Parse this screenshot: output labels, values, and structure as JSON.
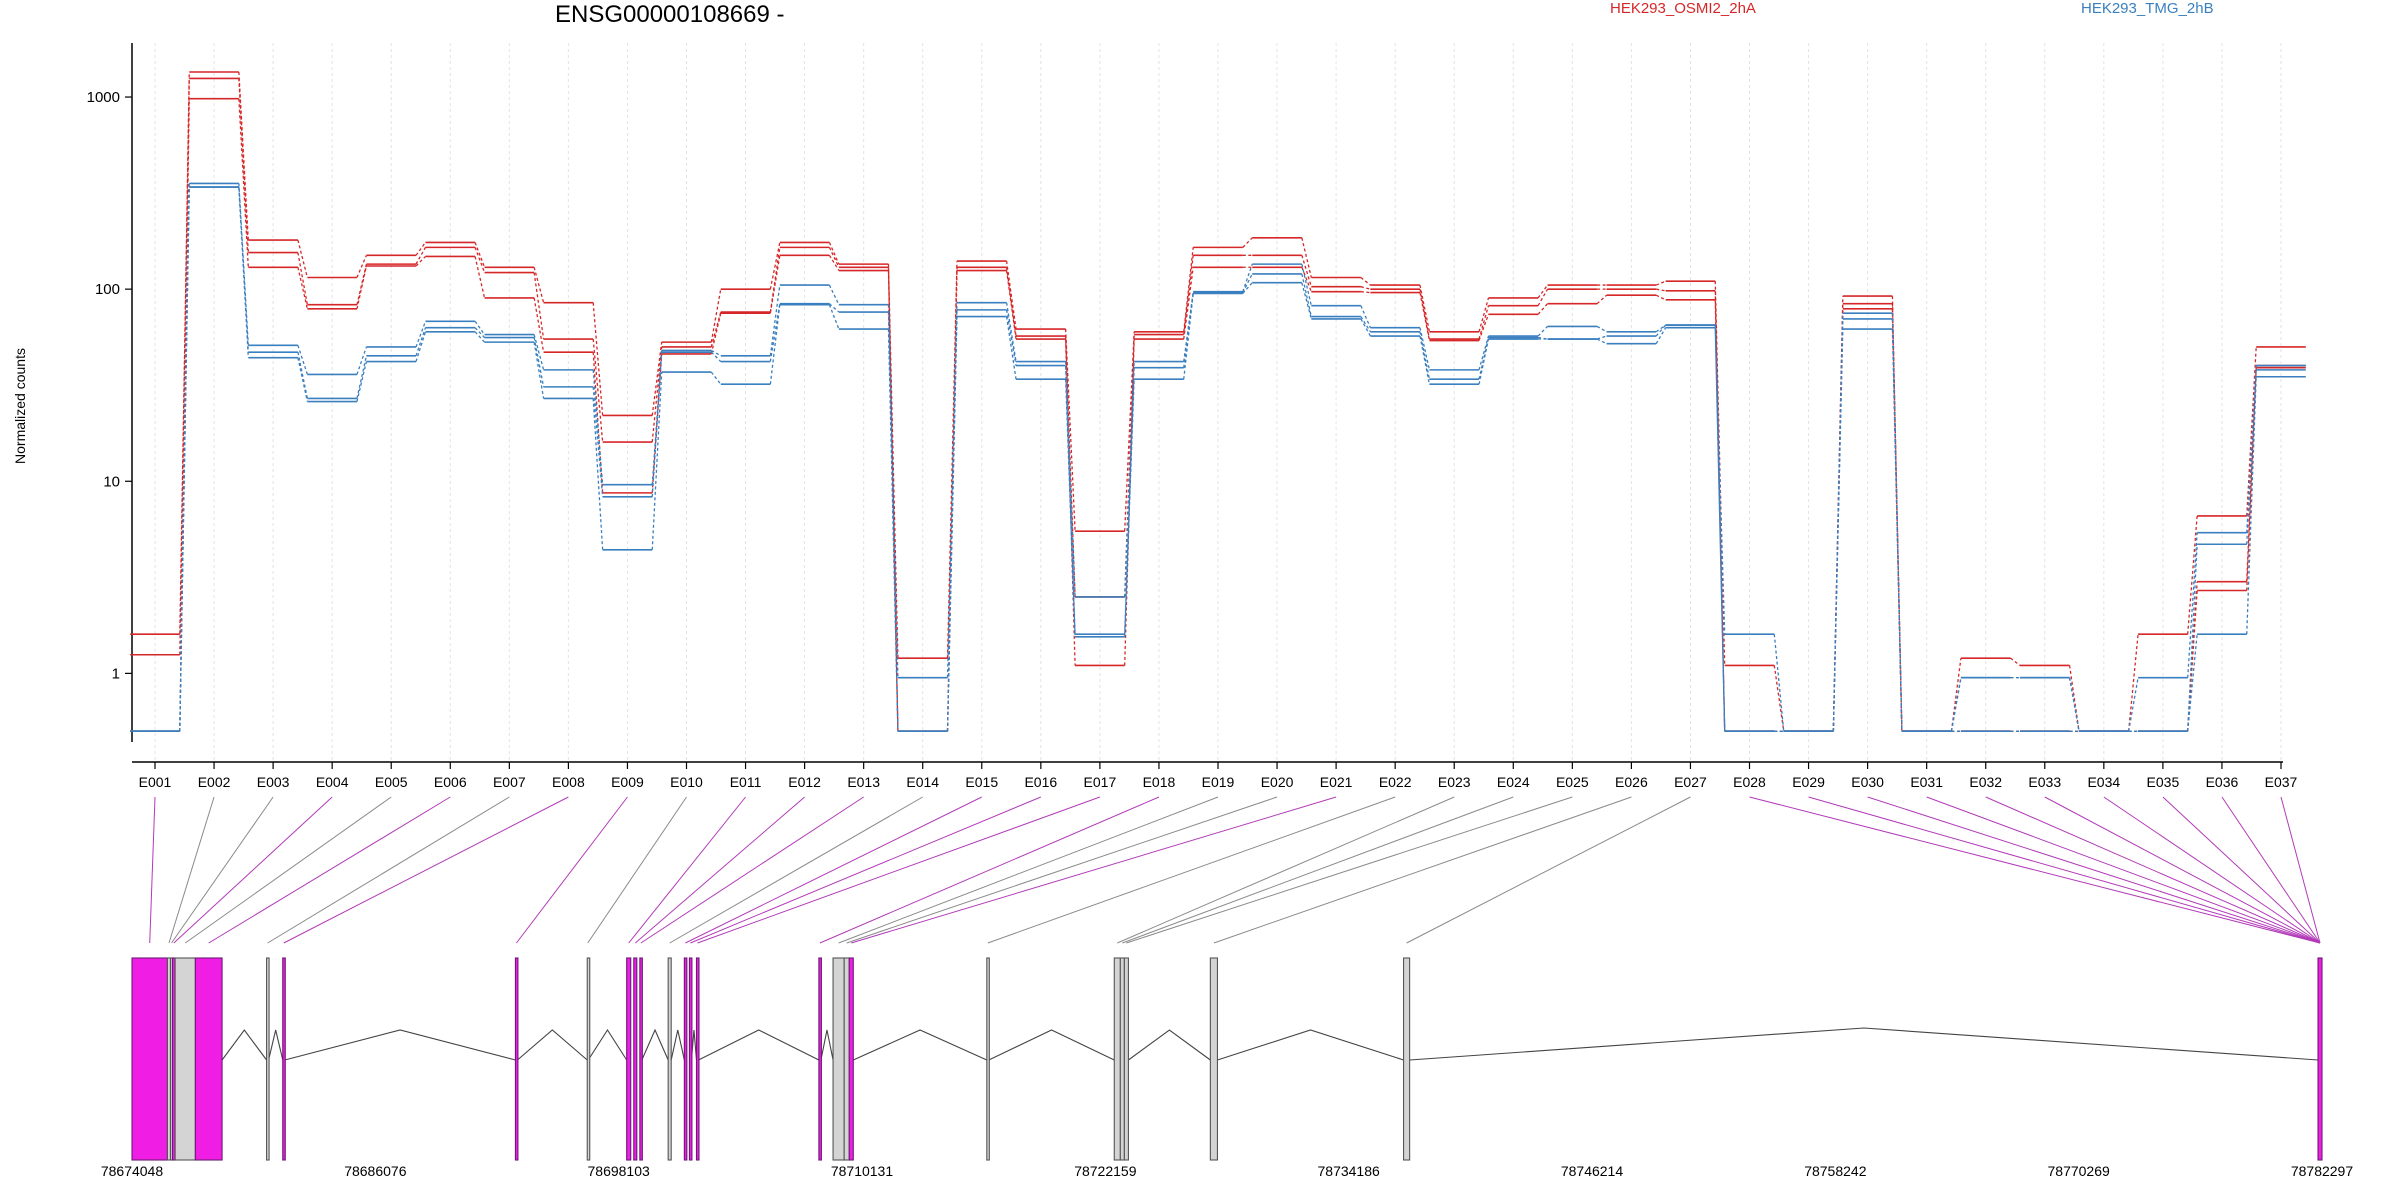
{
  "chart_data": {
    "type": "line",
    "title": "ENSG00000108669 -",
    "ylabel": "Normalized counts",
    "yscale": "log",
    "ylim": [
      0.45,
      1800
    ],
    "yticks": [
      "1000",
      "100",
      "10",
      "1"
    ],
    "yticks_values": [
      1000,
      100,
      10,
      1
    ],
    "categories": [
      "E001",
      "E002",
      "E003",
      "E004",
      "E005",
      "E006",
      "E007",
      "E008",
      "E009",
      "E010",
      "E011",
      "E012",
      "E013",
      "E014",
      "E015",
      "E016",
      "E017",
      "E018",
      "E019",
      "E020",
      "E021",
      "E022",
      "E023",
      "E024",
      "E025",
      "E026",
      "E027",
      "E028",
      "E029",
      "E030",
      "E031",
      "E032",
      "E033",
      "E034",
      "E035",
      "E036",
      "E037"
    ],
    "legend": [
      {
        "name": "HEK293_OSMI2_2hA",
        "color": "#d62728"
      },
      {
        "name": "HEK293_TMG_2hB",
        "color": "#3a7fbf"
      }
    ],
    "series": [
      {
        "group": "HEK293_OSMI2_2hA",
        "color": "#d62728",
        "values": [
          1.25,
          1350,
          180,
          115,
          150,
          175,
          130,
          85,
          22,
          53,
          100,
          175,
          135,
          1.2,
          140,
          62,
          5.5,
          60,
          165,
          185,
          115,
          105,
          60,
          90,
          105,
          105,
          110,
          1.1,
          0.5,
          92,
          0.5,
          1.2,
          1.1,
          0.5,
          1.6,
          6.6,
          50
        ]
      },
      {
        "group": "HEK293_OSMI2_2hA",
        "color": "#d62728",
        "values": [
          1.6,
          1250,
          155,
          83,
          135,
          165,
          122,
          55,
          16,
          50,
          76,
          165,
          130,
          0.5,
          130,
          57,
          2.5,
          58,
          150,
          150,
          103,
          100,
          55,
          82,
          100,
          100,
          98,
          0.5,
          0.5,
          84,
          0.5,
          0.5,
          0.5,
          0.5,
          0.5,
          3.0,
          40
        ]
      },
      {
        "group": "HEK293_OSMI2_2hA",
        "color": "#d62728",
        "values": [
          0.5,
          980,
          130,
          79,
          132,
          148,
          90,
          47,
          8.7,
          46,
          75,
          150,
          125,
          0.5,
          125,
          55,
          1.1,
          55,
          130,
          130,
          97,
          96,
          54,
          74,
          84,
          93,
          88,
          0.5,
          0.5,
          79,
          0.5,
          0.5,
          0.5,
          0.5,
          0.5,
          2.7,
          39
        ]
      },
      {
        "group": "HEK293_TMG_2hB",
        "color": "#3a7fbf",
        "values": [
          0.5,
          355,
          51,
          36,
          50,
          68,
          58,
          38,
          9.6,
          48,
          45,
          105,
          83,
          0.95,
          85,
          42,
          2.5,
          42,
          97,
          135,
          82,
          63,
          38,
          57,
          64,
          60,
          65,
          1.6,
          0.5,
          75,
          0.5,
          0.95,
          0.95,
          0.5,
          0.95,
          5.4,
          40
        ]
      },
      {
        "group": "HEK293_TMG_2hB",
        "color": "#3a7fbf",
        "values": [
          0.5,
          340,
          47,
          27,
          45,
          63,
          56,
          31,
          8.3,
          47,
          42,
          84,
          76,
          0.5,
          78,
          40,
          1.6,
          39,
          96,
          120,
          72,
          60,
          34,
          56,
          55,
          57,
          65,
          0.5,
          0.5,
          70,
          0.5,
          0.95,
          0.95,
          0.5,
          0.5,
          4.7,
          38
        ]
      },
      {
        "group": "HEK293_TMG_2hB",
        "color": "#3a7fbf",
        "values": [
          0.5,
          340,
          44,
          26,
          42,
          60,
          53,
          27,
          4.4,
          37,
          32,
          83,
          62,
          0.5,
          72,
          34,
          1.55,
          34,
          95,
          108,
          70,
          57,
          32,
          55,
          55,
          52,
          63,
          0.5,
          0.5,
          62,
          0.5,
          0.5,
          0.5,
          0.5,
          0.5,
          1.6,
          35
        ]
      }
    ],
    "gene_model": {
      "coordinate_labels": [
        "78674048",
        "78686076",
        "78698103",
        "78710131",
        "78722159",
        "78734186",
        "78746214",
        "78758242",
        "78770269",
        "78782297"
      ],
      "coordinate_values": [
        78674048,
        78686076,
        78698103,
        78710131,
        78722159,
        78734186,
        78746214,
        78758242,
        78770269,
        78782297
      ],
      "exon_starts": [
        78674048,
        78675800,
        78675950,
        78676050,
        78676180,
        78677180,
        78680700,
        78681500,
        78693000,
        78696550,
        78698500,
        78698850,
        78699150,
        78700550,
        78701350,
        78701600,
        78701950,
        78708000,
        78708700,
        78709250,
        78709500,
        78716300,
        78722600,
        78722900,
        78723100,
        78727350,
        78736900,
        78782100
      ],
      "exon_ends": [
        78675800,
        78675950,
        78676050,
        78676180,
        78677180,
        78678500,
        78680800,
        78681600,
        78693100,
        78696600,
        78698700,
        78699000,
        78699250,
        78700700,
        78701450,
        78701700,
        78702050,
        78708100,
        78709250,
        78709500,
        78709700,
        78716400,
        78722900,
        78723100,
        78723300,
        78727700,
        78737200,
        78782297
      ],
      "exon_highlighted": [
        true,
        false,
        false,
        true,
        false,
        true,
        false,
        true,
        true,
        false,
        true,
        true,
        true,
        false,
        true,
        true,
        true,
        true,
        false,
        false,
        true,
        false,
        false,
        false,
        false,
        false,
        false,
        true
      ]
    }
  }
}
